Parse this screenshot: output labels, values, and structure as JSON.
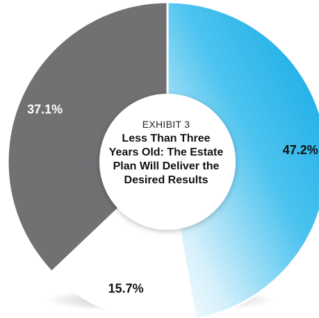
{
  "chart_data": {
    "type": "pie",
    "variant": "donut",
    "exhibit_label": "EXHIBIT 3",
    "title": "Less Than Three Years Old: The Estate Plan Will Deliver the Desired Results",
    "title_lines": [
      "Less Than Three",
      "Years Old: The Estate",
      "Plan Will Deliver the",
      "Desired Results"
    ],
    "slices": [
      {
        "value": 47.2,
        "label": "47.2%",
        "color": "#1ab0e6",
        "label_color": "#111111"
      },
      {
        "value": 15.7,
        "label": "15.7%",
        "color": "#ffffff",
        "label_color": "#111111"
      },
      {
        "value": 37.1,
        "label": "37.1%",
        "color": "#717174",
        "label_color": "#ffffff"
      }
    ],
    "start_angle_deg": 0,
    "direction": "clockwise"
  }
}
